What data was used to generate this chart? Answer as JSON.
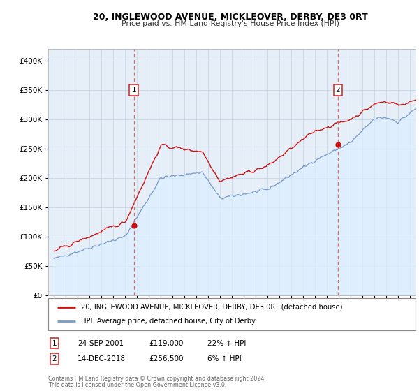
{
  "title": "20, INGLEWOOD AVENUE, MICKLEOVER, DERBY, DE3 0RT",
  "subtitle": "Price paid vs. HM Land Registry's House Price Index (HPI)",
  "legend_line1": "20, INGLEWOOD AVENUE, MICKLEOVER, DERBY, DE3 0RT (detached house)",
  "legend_line2": "HPI: Average price, detached house, City of Derby",
  "annotation1_date": "24-SEP-2001",
  "annotation1_price": "£119,000",
  "annotation1_hpi": "22% ↑ HPI",
  "annotation2_date": "14-DEC-2018",
  "annotation2_price": "£256,500",
  "annotation2_hpi": "6% ↑ HPI",
  "footer1": "Contains HM Land Registry data © Crown copyright and database right 2024.",
  "footer2": "This data is licensed under the Open Government Licence v3.0.",
  "point1_x": 2001.73,
  "point1_y": 119000,
  "point2_x": 2018.95,
  "point2_y": 256500,
  "hpi_line_color": "#7799cc",
  "hpi_fill_color": "#ddeeff",
  "price_line_color": "#cc1111",
  "point_color": "#cc1111",
  "dashed_line_color": "#dd6666",
  "annotation_box_color": "#cc2222",
  "grid_color": "#c8d8e8",
  "bg_color": "#e6eff8",
  "ylim": [
    0,
    420000
  ],
  "xlim_start": 1994.5,
  "xlim_end": 2025.5
}
